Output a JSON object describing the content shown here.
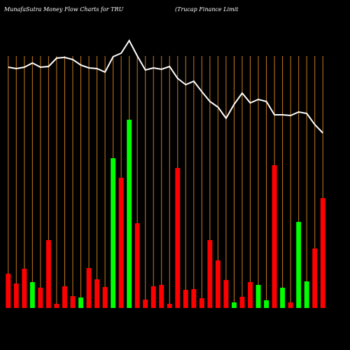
{
  "chart_data": {
    "type": "bar",
    "title": "MunafaSutra  Money Flow  Charts for TRU",
    "subtitle": "(Trucap Finance    Limit",
    "categories": [
      null,
      null,
      null,
      null,
      null,
      null,
      null,
      null,
      null,
      null,
      null,
      null,
      null,
      null,
      null,
      null,
      null,
      null,
      null,
      null,
      null,
      null,
      null,
      null,
      null,
      null,
      null,
      null,
      null,
      null,
      null,
      null,
      null,
      null,
      null,
      null,
      null,
      null,
      null,
      null
    ],
    "series": [
      {
        "type": "bar",
        "values": [
          49,
          35,
          56,
          37,
          29,
          97,
          6,
          31,
          17,
          15,
          57,
          41,
          30,
          214,
          186,
          269,
          121,
          12,
          31,
          33,
          6,
          200,
          26,
          27,
          14,
          97,
          68,
          40,
          8,
          16,
          37,
          33,
          11,
          204,
          29,
          8,
          123,
          38,
          85,
          157
        ],
        "colors": [
          "#ff0000",
          "#ff0000",
          "#ff0000",
          "#00ff00",
          "#ff0000",
          "#ff0000",
          "#ff0000",
          "#ff0000",
          "#ff0000",
          "#00ff00",
          "#ff0000",
          "#ff0000",
          "#ff0000",
          "#00ff00",
          "#ff0000",
          "#00ff00",
          "#ff0000",
          "#ff0000",
          "#ff0000",
          "#ff0000",
          "#ff0000",
          "#ff0000",
          "#ff0000",
          "#ff0000",
          "#ff0000",
          "#ff0000",
          "#ff0000",
          "#ff0000",
          "#00ff00",
          "#ff0000",
          "#ff0000",
          "#00ff00",
          "#00ff00",
          "#ff0000",
          "#00ff00",
          "#ff0000",
          "#00ff00",
          "#00ff00",
          "#ff0000",
          "#ff0000"
        ]
      },
      {
        "type": "line",
        "color": "#ffffff",
        "values": [
          344,
          342,
          344,
          350,
          344,
          345,
          357,
          358,
          355,
          347,
          343,
          342,
          337,
          359,
          364,
          382,
          360,
          340,
          343,
          341,
          345,
          328,
          319,
          324,
          309,
          295,
          287,
          271,
          291,
          307,
          293,
          298,
          295,
          276,
          276,
          275,
          280,
          278,
          262,
          250
        ]
      }
    ],
    "ylim": [
      0,
      360
    ],
    "grid_color": "#c87a1e"
  }
}
